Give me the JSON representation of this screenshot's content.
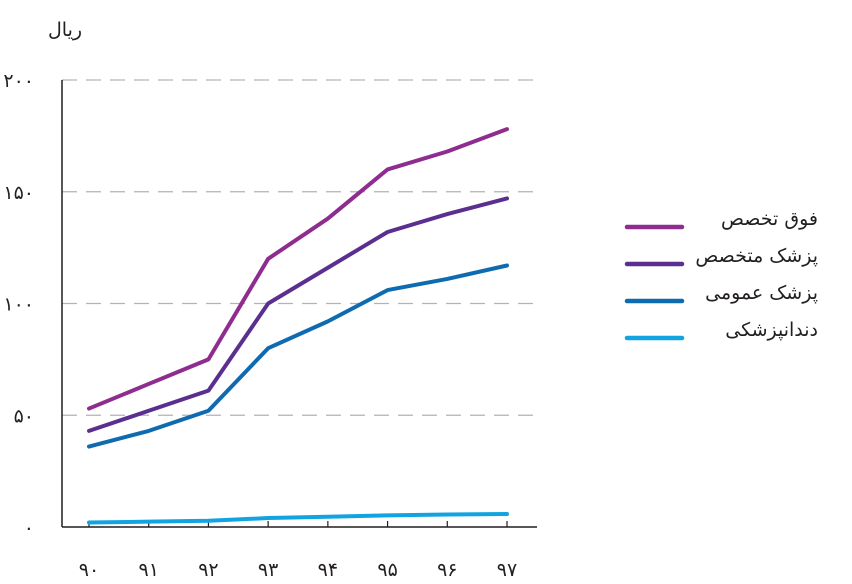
{
  "chart_data": {
    "type": "line",
    "ylabel": "ریال",
    "x": [
      "۹۰",
      "۹۱",
      "۹۲",
      "۹۳",
      "۹۴",
      "۹۵",
      "۹۶",
      "۹۷"
    ],
    "y_ticks": [
      "۰",
      "۵۰",
      "۱۰۰",
      "۱۵۰",
      "۲۰۰"
    ],
    "ylim": [
      0,
      200
    ],
    "grid": true,
    "legend_position": "right",
    "series": [
      {
        "name": "فوق تخصص",
        "color": "#8e2c8f",
        "values": [
          53,
          64,
          75,
          120,
          138,
          160,
          168,
          178
        ]
      },
      {
        "name": "پزشک متخصص",
        "color": "#5b2f8f",
        "values": [
          43,
          52,
          61,
          100,
          116,
          132,
          140,
          147
        ]
      },
      {
        "name": "پزشک عمومی",
        "color": "#0f6bb0",
        "values": [
          36,
          43,
          52,
          80,
          92,
          106,
          111,
          117
        ]
      },
      {
        "name": "دندانپزشکی",
        "color": "#12a4e0",
        "values": [
          2,
          2.4,
          2.8,
          4,
          4.6,
          5.2,
          5.6,
          5.8
        ]
      }
    ]
  }
}
